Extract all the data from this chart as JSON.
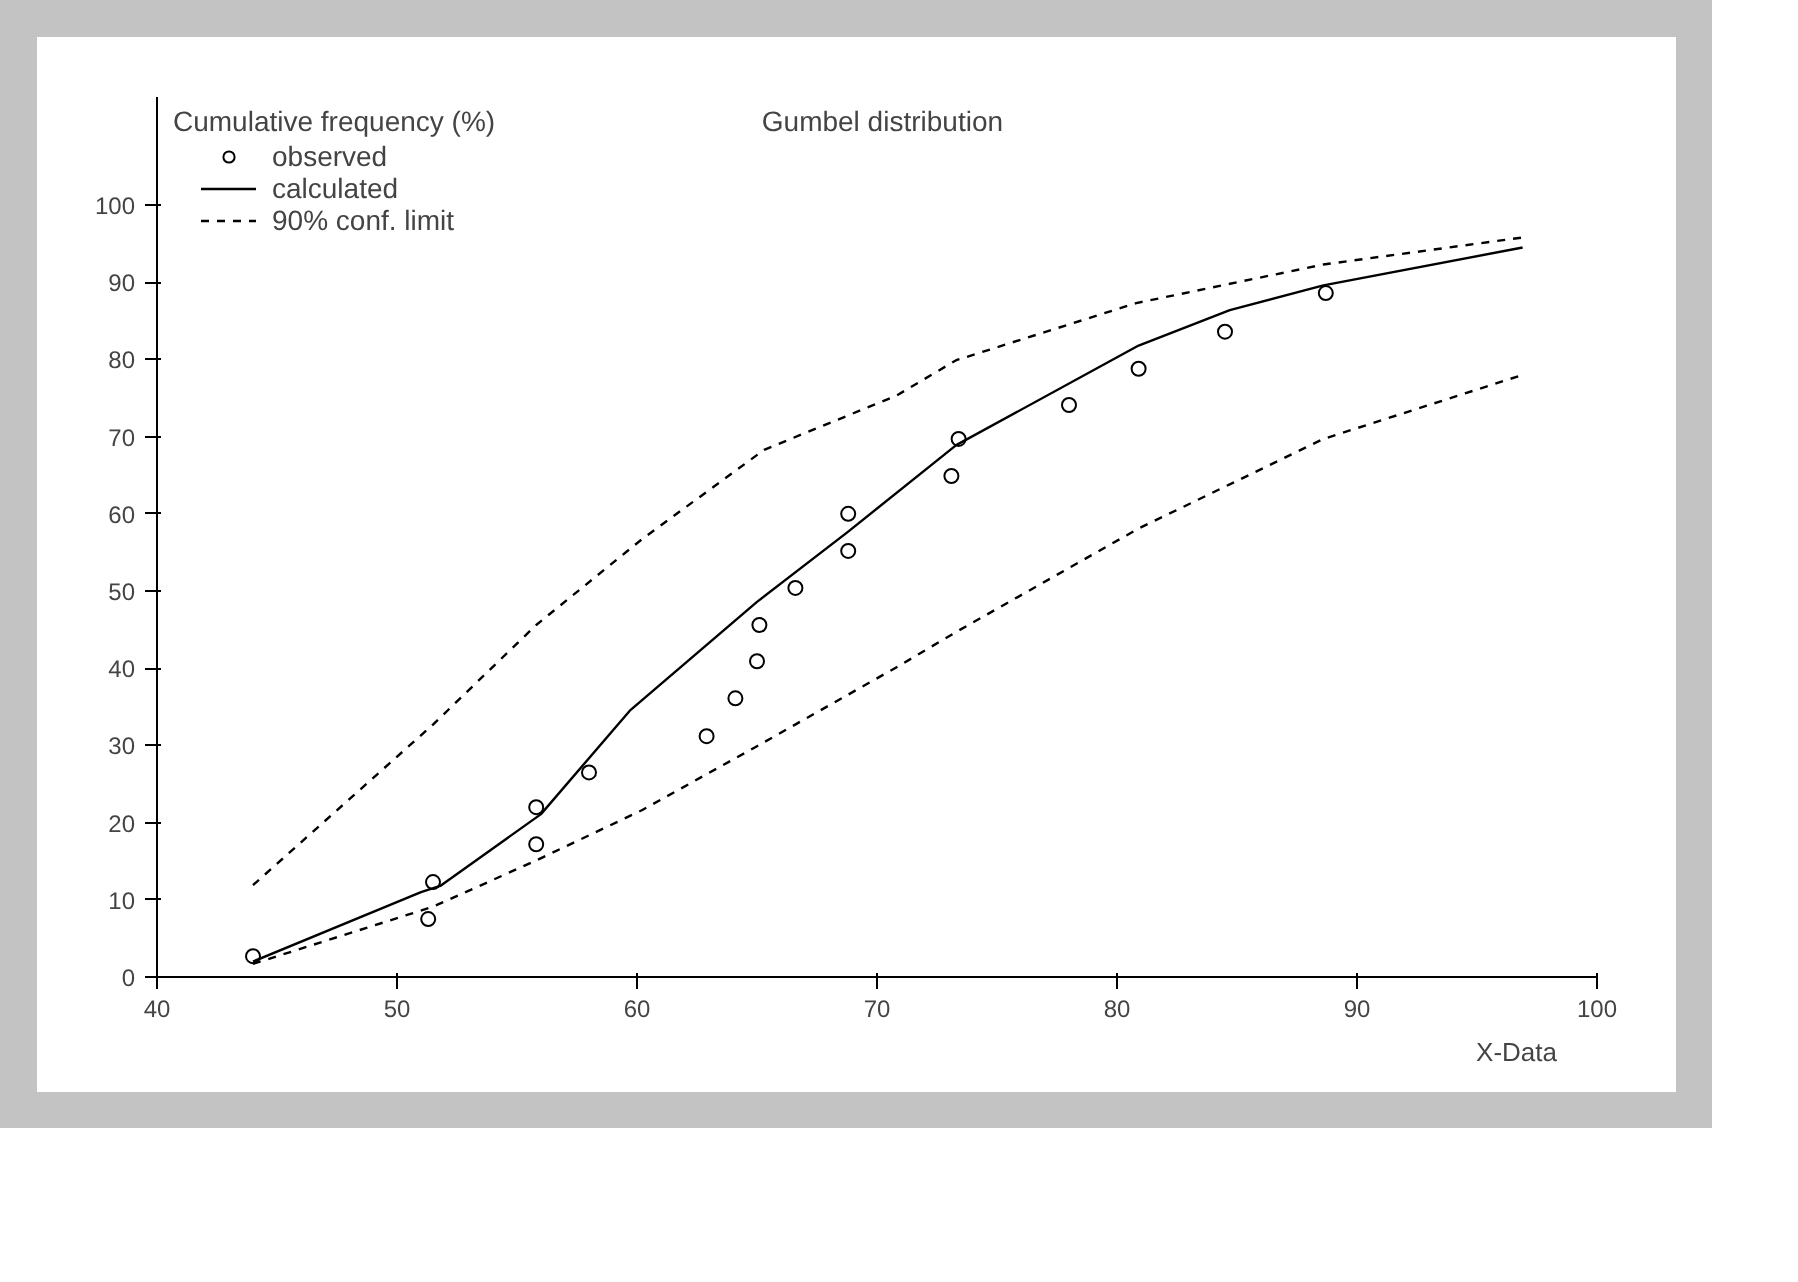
{
  "chart_data": {
    "type": "line",
    "title": "Gumbel distribution",
    "xlabel": "X-Data",
    "ylabel": "Cumulative frequency (%)",
    "xlim": [
      40,
      100
    ],
    "ylim": [
      0,
      114
    ],
    "xticks": [
      40,
      50,
      60,
      70,
      80,
      90,
      100
    ],
    "yticks": [
      0,
      10,
      20,
      30,
      40,
      50,
      60,
      70,
      80,
      90,
      100
    ],
    "grid": false,
    "legend": "top left",
    "series": [
      {
        "name": "observed",
        "type": "scatter",
        "marker": "circle",
        "color": "#000000",
        "x": [
          44.0,
          51.3,
          51.5,
          55.8,
          55.8,
          58.0,
          62.9,
          64.1,
          65.0,
          65.1,
          66.6,
          68.8,
          68.8,
          73.1,
          73.4,
          78.0,
          80.9,
          84.5,
          88.7
        ],
        "values": [
          2.7,
          7.5,
          12.3,
          17.2,
          22.0,
          26.5,
          31.2,
          36.1,
          40.9,
          45.6,
          50.4,
          55.2,
          60.0,
          64.9,
          69.7,
          74.1,
          78.8,
          83.6,
          88.6
        ]
      },
      {
        "name": "calculated",
        "line_style": "solid",
        "color": "#000000",
        "x": [
          44.0,
          51.0,
          51.8,
          56.0,
          59.7,
          65.0,
          68.8,
          73.3,
          80.9,
          84.7,
          88.6,
          96.9
        ],
        "values": [
          2.0,
          11.0,
          11.8,
          21.1,
          34.5,
          48.6,
          57.7,
          68.9,
          81.8,
          86.4,
          89.6,
          94.5
        ]
      },
      {
        "name": "90% conf. limit",
        "line_style": "dashed",
        "color": "#000000",
        "x": [
          44.0,
          51.5,
          55.8,
          60.2,
          65.3,
          70.8,
          73.3,
          80.8,
          88.6,
          96.9
        ],
        "values": [
          11.9,
          32.7,
          45.6,
          56.7,
          68.3,
          75.3,
          79.9,
          87.3,
          92.3,
          95.8
        ]
      },
      {
        "line_style": "dashed",
        "color": "#000000",
        "x": [
          44.0,
          51.5,
          55.8,
          60.2,
          65.0,
          70.8,
          73.3,
          80.9,
          88.6,
          96.9
        ],
        "values": [
          1.7,
          9.1,
          15.1,
          21.6,
          29.9,
          40.1,
          44.7,
          58.1,
          69.7,
          78.0
        ]
      }
    ]
  }
}
